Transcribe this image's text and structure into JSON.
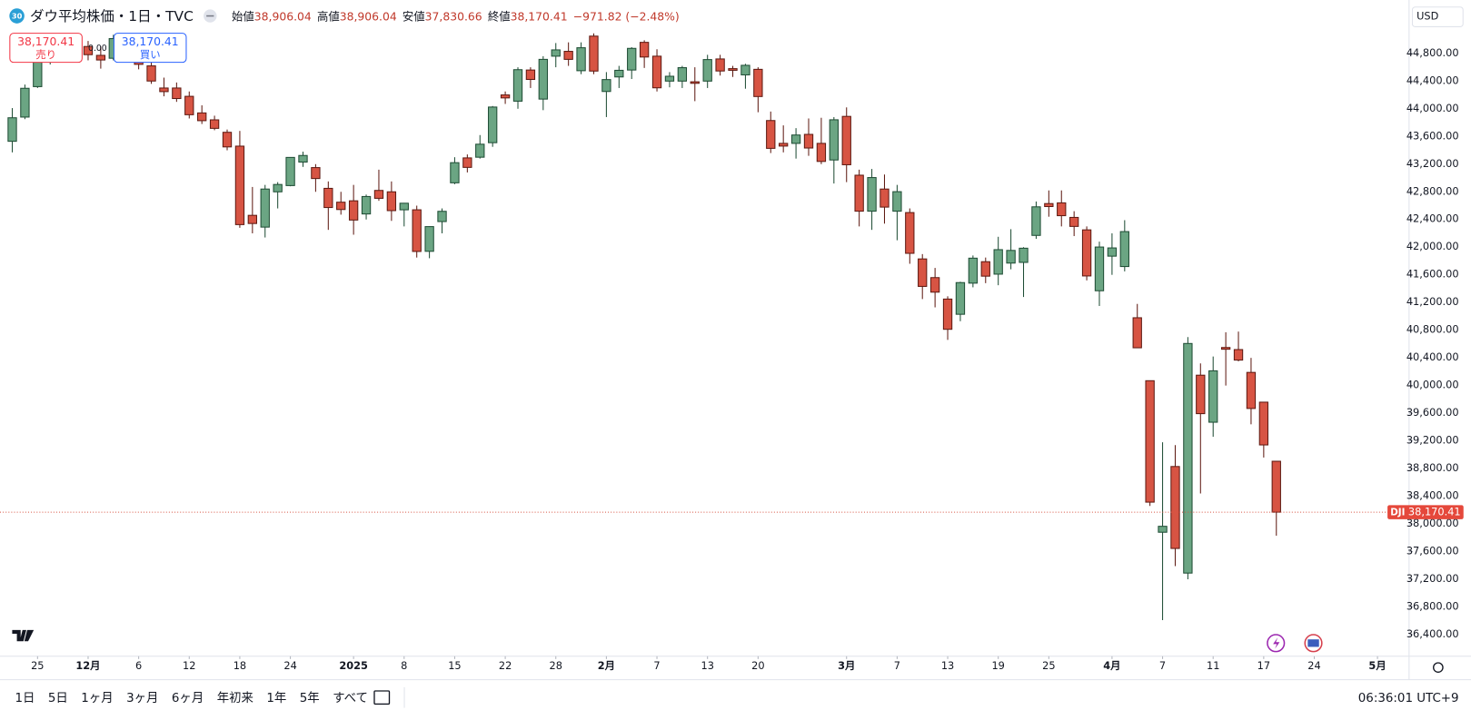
{
  "chart_data": {
    "type": "candlestick",
    "badge": "30",
    "title": "ダウ平均株価・1日・TVC",
    "ohlc_legend": [
      {
        "label": "始値",
        "value": "38,906.04"
      },
      {
        "label": "高値",
        "value": "38,906.04"
      },
      {
        "label": "安値",
        "value": "37,830.66"
      },
      {
        "label": "終値",
        "value": "38,170.41"
      }
    ],
    "change": "−971.82 (−2.48%)",
    "sell": {
      "price": "38,170.41",
      "label": "売り"
    },
    "spread": "0.00",
    "buy": {
      "price": "38,170.41",
      "label": "買い"
    },
    "currency": "USD",
    "symbol": "DJI",
    "last_price": {
      "value": 38170.41,
      "label": "38,170.41"
    },
    "up_color": "#6ba583",
    "down_color": "#d75443",
    "ylim": [
      36088,
      45572
    ],
    "yticks": [
      {
        "value": 36400,
        "label": "36,400.00"
      },
      {
        "value": 36800,
        "label": "36,800.00"
      },
      {
        "value": 37200,
        "label": "37,200.00"
      },
      {
        "value": 37600,
        "label": "37,600.00"
      },
      {
        "value": 38000,
        "label": "38,000.00"
      },
      {
        "value": 38400,
        "label": "38,400.00"
      },
      {
        "value": 38800,
        "label": "38,800.00"
      },
      {
        "value": 39200,
        "label": "39,200.00"
      },
      {
        "value": 39600,
        "label": "39,600.00"
      },
      {
        "value": 40000,
        "label": "40,000.00"
      },
      {
        "value": 40400,
        "label": "40,400.00"
      },
      {
        "value": 40800,
        "label": "40,800.00"
      },
      {
        "value": 41200,
        "label": "41,200.00"
      },
      {
        "value": 41600,
        "label": "41,600.00"
      },
      {
        "value": 42000,
        "label": "42,000.00"
      },
      {
        "value": 42400,
        "label": "42,400.00"
      },
      {
        "value": 42800,
        "label": "42,800.00"
      },
      {
        "value": 43200,
        "label": "43,200.00"
      },
      {
        "value": 43600,
        "label": "43,600.00"
      },
      {
        "value": 44000,
        "label": "44,000.00"
      },
      {
        "value": 44400,
        "label": "44,400.00"
      },
      {
        "value": 44800,
        "label": "44,800.00"
      }
    ],
    "xlim": [
      -0.97,
      110.5
    ],
    "x_labels": [
      {
        "value": 2,
        "label": "25"
      },
      {
        "value": 6,
        "label": "12月"
      },
      {
        "value": 10,
        "label": "6"
      },
      {
        "value": 14,
        "label": "12"
      },
      {
        "value": 18,
        "label": "18"
      },
      {
        "value": 22,
        "label": "24"
      },
      {
        "value": 27,
        "label": "2025"
      },
      {
        "value": 31,
        "label": "8"
      },
      {
        "value": 35,
        "label": "15"
      },
      {
        "value": 39,
        "label": "22"
      },
      {
        "value": 43,
        "label": "28"
      },
      {
        "value": 47,
        "label": "2月"
      },
      {
        "value": 51,
        "label": "7"
      },
      {
        "value": 55,
        "label": "13"
      },
      {
        "value": 59,
        "label": "20"
      },
      {
        "value": 66,
        "label": "3月"
      },
      {
        "value": 70,
        "label": "7"
      },
      {
        "value": 74,
        "label": "13"
      },
      {
        "value": 78,
        "label": "19"
      },
      {
        "value": 82,
        "label": "25"
      },
      {
        "value": 87,
        "label": "4月"
      },
      {
        "value": 91,
        "label": "7"
      },
      {
        "value": 95,
        "label": "11"
      },
      {
        "value": 99,
        "label": "17"
      },
      {
        "value": 103,
        "label": "24"
      },
      {
        "value": 108,
        "label": "5月"
      }
    ],
    "open": [
      43530,
      43880,
      44320,
      44740,
      44870,
      44760,
      44900,
      44772,
      44730,
      45010,
      44790,
      44620,
      44300,
      44300,
      44180,
      43940,
      43840,
      43660,
      43460,
      42460,
      42290,
      42800,
      42890,
      43230,
      43150,
      42850,
      42650,
      42670,
      42480,
      42820,
      42800,
      42540,
      42540,
      41940,
      42370,
      42930,
      43290,
      43300,
      43510,
      44200,
      44110,
      44560,
      44140,
      44760,
      44830,
      44550,
      45050,
      44250,
      44460,
      44560,
      44960,
      44760,
      44400,
      44400,
      44390,
      44400,
      44720,
      44580,
      44490,
      44570,
      43830,
      43500,
      43500,
      43630,
      43500,
      43260,
      43890,
      43040,
      42520,
      42840,
      42520,
      42500,
      41830,
      41560,
      41250,
      41030,
      41480,
      41790,
      41610,
      41770,
      41780,
      42170,
      42630,
      42640,
      42430,
      42250,
      41370,
      41870,
      41720,
      40980,
      40070,
      37880,
      38830,
      37290,
      40150,
      39470,
      40550,
      40520,
      40190,
      39760,
      38906.04
    ],
    "high": [
      44010,
      44350,
      44860,
      44900,
      44980,
      44980,
      44980,
      44900,
      45070,
      45060,
      44860,
      44700,
      44450,
      44380,
      44250,
      44050,
      43900,
      43700,
      43680,
      42870,
      42900,
      42940,
      43300,
      43380,
      43200,
      42950,
      42800,
      42900,
      42760,
      43120,
      42950,
      42640,
      42600,
      42300,
      42560,
      43300,
      43340,
      43620,
      44040,
      44250,
      44600,
      44600,
      44760,
      44950,
      44960,
      44960,
      45090,
      44530,
      44620,
      44890,
      44990,
      44860,
      44530,
      44620,
      44600,
      44780,
      44780,
      44620,
      44650,
      44600,
      43960,
      43760,
      43720,
      43860,
      43870,
      43880,
      44020,
      43120,
      43130,
      43050,
      42900,
      42560,
      41900,
      41700,
      41290,
      41500,
      41880,
      41850,
      42150,
      42260,
      42000,
      42660,
      42820,
      42820,
      42520,
      42300,
      42080,
      42200,
      42390,
      41180,
      40070,
      39180,
      39140,
      40700,
      40320,
      40420,
      40770,
      40780,
      40400,
      39760,
      38906.04
    ],
    "low": [
      43370,
      43850,
      44300,
      44640,
      44700,
      44750,
      44700,
      44580,
      44700,
      44720,
      44570,
      44360,
      44180,
      44100,
      43860,
      43780,
      43690,
      43400,
      42280,
      42200,
      42140,
      42560,
      42880,
      43160,
      42800,
      42250,
      42470,
      42180,
      42400,
      42670,
      42380,
      42300,
      41850,
      41840,
      42200,
      42910,
      43080,
      43280,
      43450,
      44070,
      44000,
      44300,
      43980,
      44600,
      44620,
      44500,
      44500,
      43880,
      44300,
      44430,
      44590,
      44250,
      44310,
      44300,
      44110,
      44300,
      44480,
      44460,
      44290,
      43950,
      43360,
      43370,
      43280,
      43320,
      43200,
      42920,
      42940,
      42300,
      42250,
      42340,
      42100,
      41760,
      41250,
      41130,
      40660,
      40930,
      41420,
      41480,
      41450,
      41680,
      41280,
      42120,
      42440,
      42300,
      42160,
      41520,
      41150,
      41600,
      41650,
      40540,
      38260,
      36610,
      37390,
      37200,
      38440,
      39260,
      40000,
      40350,
      39440,
      38960,
      37830.66
    ],
    "close": [
      43870,
      44296,
      44736,
      44860,
      44722,
      44910,
      44782,
      44705,
      45014,
      44765,
      44642,
      44401,
      44248,
      44148,
      43914,
      43828,
      43717,
      43449,
      42326,
      42342,
      42840,
      42906,
      43297,
      43325,
      42992,
      42573,
      42544,
      42392,
      42732,
      42706,
      42528,
      42635,
      41938,
      42297,
      42518,
      43221,
      43153,
      43488,
      44025,
      44157,
      44565,
      44424,
      44714,
      44851,
      44714,
      44882,
      44545,
      44422,
      44556,
      44873,
      44748,
      44303,
      44470,
      44594,
      44368,
      44711,
      44546,
      44556,
      44628,
      44177,
      43428,
      43461,
      43621,
      43433,
      43239,
      43841,
      43191,
      42520,
      43006,
      42579,
      42802,
      41911,
      41433,
      41350,
      40813,
      41488,
      41841,
      41581,
      41964,
      41953,
      41985,
      42583,
      42587,
      42455,
      42300,
      41584,
      42002,
      41989,
      42225,
      40546,
      38315,
      37966,
      37646,
      40608,
      39594,
      40213,
      40525,
      40368,
      39669,
      39142,
      38170.41
    ]
  },
  "toolbar": {
    "ranges": [
      "1日",
      "5日",
      "1ヶ月",
      "3ヶ月",
      "6ヶ月",
      "年初来",
      "1年",
      "5年",
      "すべて"
    ],
    "clock": "06:36:01 UTC+9"
  }
}
